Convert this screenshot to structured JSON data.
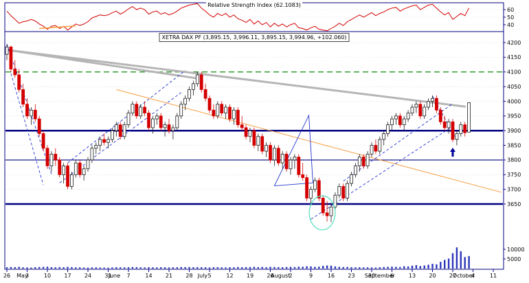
{
  "chart_data": {
    "type": "candlestick",
    "title": "XETRA DAX PF (3,895.15, 3,996.11, 3,895.15, 3,994.96, +102.060)",
    "rsi_title": "Relative Strength Index (62.1083)",
    "price_ticks": [
      4200,
      4150,
      4100,
      4050,
      4000,
      3950,
      3900,
      3850,
      3800,
      3750,
      3700,
      3650
    ],
    "volume_ticks": [
      10000,
      5000
    ],
    "rsi_ticks": [
      60,
      50,
      40
    ],
    "x_ticks": [
      {
        "x": 0,
        "label": "26"
      },
      {
        "x": 5,
        "label": "3"
      },
      {
        "x": 10,
        "label": "10"
      },
      {
        "x": 15,
        "label": "17"
      },
      {
        "x": 20,
        "label": "24"
      },
      {
        "x": 25,
        "label": "31"
      },
      {
        "x": 30,
        "label": "7"
      },
      {
        "x": 35,
        "label": "14"
      },
      {
        "x": 40,
        "label": "21"
      },
      {
        "x": 45,
        "label": "28"
      },
      {
        "x": 50,
        "label": "5"
      },
      {
        "x": 55,
        "label": "12"
      },
      {
        "x": 60,
        "label": "19"
      },
      {
        "x": 65,
        "label": "26"
      },
      {
        "x": 70,
        "label": "2"
      },
      {
        "x": 75,
        "label": "9"
      },
      {
        "x": 80,
        "label": "16"
      },
      {
        "x": 85,
        "label": "23"
      },
      {
        "x": 90,
        "label": "30"
      },
      {
        "x": 95,
        "label": "6"
      },
      {
        "x": 100,
        "label": "13"
      },
      {
        "x": 105,
        "label": "20"
      },
      {
        "x": 110,
        "label": "27"
      },
      {
        "x": 115,
        "label": "4"
      },
      {
        "x": 120,
        "label": "11"
      }
    ],
    "month_labels": [
      {
        "x": 3.8,
        "label": "May"
      },
      {
        "x": 26.5,
        "label": "June"
      },
      {
        "x": 48.3,
        "label": "July"
      },
      {
        "x": 67.5,
        "label": "August"
      },
      {
        "x": 92,
        "label": "September"
      },
      {
        "x": 112.7,
        "label": "October"
      }
    ],
    "colors": {
      "up_fill": "#ffffff",
      "up_stroke": "#1a1a1a",
      "down": "#d40000",
      "volume": "#2a35b8",
      "rsi_line": "#d40000",
      "frame": "#000080"
    },
    "ohlc": [
      [
        4160,
        4195,
        4140,
        4185
      ],
      [
        4185,
        4190,
        4100,
        4110
      ],
      [
        4110,
        4140,
        4080,
        4090
      ],
      [
        4090,
        4110,
        4030,
        4040
      ],
      [
        4040,
        4060,
        3980,
        3990
      ],
      [
        3990,
        4010,
        3940,
        3950
      ],
      [
        3950,
        3980,
        3920,
        3970
      ],
      [
        3970,
        3990,
        3930,
        3940
      ],
      [
        3940,
        3950,
        3880,
        3890
      ],
      [
        3890,
        3900,
        3830,
        3840
      ],
      [
        3840,
        3850,
        3770,
        3780
      ],
      [
        3780,
        3830,
        3760,
        3820
      ],
      [
        3820,
        3840,
        3780,
        3800
      ],
      [
        3800,
        3810,
        3740,
        3750
      ],
      [
        3750,
        3790,
        3720,
        3780
      ],
      [
        3780,
        3790,
        3700,
        3710
      ],
      [
        3710,
        3760,
        3700,
        3750
      ],
      [
        3750,
        3800,
        3740,
        3790
      ],
      [
        3790,
        3800,
        3740,
        3750
      ],
      [
        3750,
        3780,
        3730,
        3770
      ],
      [
        3770,
        3810,
        3760,
        3800
      ],
      [
        3800,
        3850,
        3790,
        3840
      ],
      [
        3840,
        3860,
        3820,
        3850
      ],
      [
        3850,
        3880,
        3830,
        3870
      ],
      [
        3870,
        3890,
        3850,
        3860
      ],
      [
        3860,
        3880,
        3840,
        3870
      ],
      [
        3870,
        3910,
        3860,
        3900
      ],
      [
        3900,
        3930,
        3880,
        3920
      ],
      [
        3920,
        3930,
        3870,
        3880
      ],
      [
        3880,
        3930,
        3870,
        3920
      ],
      [
        3920,
        3970,
        3910,
        3960
      ],
      [
        3960,
        4000,
        3950,
        3990
      ],
      [
        3990,
        4000,
        3940,
        3950
      ],
      [
        3950,
        3990,
        3940,
        3980
      ],
      [
        3980,
        4000,
        3950,
        3960
      ],
      [
        3960,
        3970,
        3900,
        3910
      ],
      [
        3910,
        3950,
        3890,
        3940
      ],
      [
        3940,
        3960,
        3920,
        3950
      ],
      [
        3950,
        3960,
        3900,
        3910
      ],
      [
        3910,
        3930,
        3880,
        3920
      ],
      [
        3920,
        3940,
        3890,
        3900
      ],
      [
        3900,
        3920,
        3870,
        3910
      ],
      [
        3910,
        3960,
        3900,
        3950
      ],
      [
        3950,
        4000,
        3940,
        3990
      ],
      [
        3990,
        4020,
        3970,
        4010
      ],
      [
        4010,
        4050,
        4000,
        4040
      ],
      [
        4040,
        4070,
        4020,
        4060
      ],
      [
        4060,
        4100,
        4050,
        4090
      ],
      [
        4090,
        4100,
        4030,
        4040
      ],
      [
        4040,
        4060,
        4000,
        4010
      ],
      [
        4010,
        4020,
        3960,
        3970
      ],
      [
        3970,
        3990,
        3940,
        3950
      ],
      [
        3950,
        4000,
        3940,
        3990
      ],
      [
        3990,
        4000,
        3950,
        3960
      ],
      [
        3960,
        3990,
        3940,
        3980
      ],
      [
        3980,
        3990,
        3930,
        3940
      ],
      [
        3940,
        3980,
        3920,
        3970
      ],
      [
        3970,
        3980,
        3910,
        3920
      ],
      [
        3920,
        3950,
        3900,
        3910
      ],
      [
        3910,
        3920,
        3870,
        3880
      ],
      [
        3880,
        3910,
        3860,
        3900
      ],
      [
        3900,
        3910,
        3840,
        3850
      ],
      [
        3850,
        3890,
        3830,
        3880
      ],
      [
        3880,
        3890,
        3820,
        3830
      ],
      [
        3830,
        3860,
        3810,
        3850
      ],
      [
        3850,
        3860,
        3790,
        3800
      ],
      [
        3800,
        3850,
        3780,
        3840
      ],
      [
        3840,
        3850,
        3780,
        3790
      ],
      [
        3790,
        3830,
        3770,
        3820
      ],
      [
        3820,
        3830,
        3760,
        3770
      ],
      [
        3770,
        3810,
        3750,
        3800
      ],
      [
        3800,
        3820,
        3770,
        3810
      ],
      [
        3810,
        3820,
        3740,
        3750
      ],
      [
        3750,
        3790,
        3730,
        3740
      ],
      [
        3740,
        3750,
        3660,
        3670
      ],
      [
        3670,
        3710,
        3650,
        3700
      ],
      [
        3700,
        3740,
        3690,
        3730
      ],
      [
        3730,
        3740,
        3660,
        3670
      ],
      [
        3670,
        3680,
        3610,
        3620
      ],
      [
        3620,
        3660,
        3590,
        3610
      ],
      [
        3610,
        3650,
        3588,
        3640
      ],
      [
        3640,
        3690,
        3630,
        3680
      ],
      [
        3680,
        3720,
        3670,
        3710
      ],
      [
        3710,
        3720,
        3660,
        3670
      ],
      [
        3670,
        3730,
        3660,
        3720
      ],
      [
        3720,
        3760,
        3710,
        3750
      ],
      [
        3750,
        3790,
        3740,
        3780
      ],
      [
        3780,
        3820,
        3760,
        3810
      ],
      [
        3810,
        3820,
        3770,
        3780
      ],
      [
        3780,
        3830,
        3770,
        3820
      ],
      [
        3820,
        3860,
        3810,
        3850
      ],
      [
        3850,
        3870,
        3820,
        3830
      ],
      [
        3830,
        3880,
        3820,
        3870
      ],
      [
        3870,
        3900,
        3850,
        3890
      ],
      [
        3890,
        3930,
        3880,
        3920
      ],
      [
        3920,
        3950,
        3900,
        3940
      ],
      [
        3940,
        3960,
        3920,
        3950
      ],
      [
        3950,
        3960,
        3910,
        3920
      ],
      [
        3920,
        3950,
        3900,
        3940
      ],
      [
        3940,
        3970,
        3930,
        3960
      ],
      [
        3960,
        3990,
        3950,
        3980
      ],
      [
        3980,
        4000,
        3960,
        3990
      ],
      [
        3990,
        4000,
        3940,
        3950
      ],
      [
        3950,
        3990,
        3940,
        3980
      ],
      [
        3980,
        4010,
        3970,
        4000
      ],
      [
        4000,
        4020,
        3980,
        4010
      ],
      [
        4010,
        4020,
        3960,
        3970
      ],
      [
        3970,
        3980,
        3920,
        3930
      ],
      [
        3930,
        3950,
        3900,
        3910
      ],
      [
        3910,
        3940,
        3890,
        3930
      ],
      [
        3930,
        3940,
        3860,
        3870
      ],
      [
        3870,
        3900,
        3850,
        3890
      ],
      [
        3890,
        3930,
        3880,
        3920
      ],
      [
        3920,
        3930,
        3880,
        3893
      ],
      [
        3895,
        3996,
        3895,
        3995
      ]
    ],
    "volume": [
      700,
      800,
      750,
      900,
      650,
      600,
      550,
      700,
      800,
      900,
      1000,
      700,
      650,
      800,
      700,
      900,
      750,
      600,
      650,
      550,
      500,
      600,
      650,
      550,
      500,
      450,
      600,
      700,
      650,
      600,
      700,
      800,
      750,
      650,
      600,
      700,
      650,
      600,
      700,
      650,
      600,
      650,
      700,
      800,
      750,
      800,
      700,
      750,
      700,
      650,
      600,
      700,
      750,
      650,
      600,
      700,
      650,
      800,
      700,
      750,
      800,
      900,
      750,
      850,
      700,
      900,
      800,
      750,
      700,
      800,
      900,
      800,
      1000,
      950,
      1200,
      1100,
      900,
      1000,
      1400,
      1600,
      1500,
      1100,
      900,
      800,
      850,
      700,
      650,
      700,
      600,
      650,
      600,
      550,
      700,
      800,
      900,
      1000,
      900,
      800,
      1200,
      1100,
      1500,
      1800,
      1300,
      1600,
      2000,
      2500,
      2200,
      3500,
      4500,
      5200,
      8000,
      11000,
      9000,
      6000,
      6500
    ],
    "rsi": [
      58,
      52,
      47,
      42,
      44,
      45,
      47,
      45,
      41,
      38,
      34,
      38,
      39,
      35,
      38,
      33,
      37,
      41,
      39,
      41,
      44,
      49,
      51,
      53,
      52,
      53,
      56,
      58,
      54,
      57,
      61,
      64,
      60,
      62,
      60,
      54,
      57,
      58,
      54,
      56,
      53,
      55,
      58,
      62,
      64,
      66,
      67,
      68,
      62,
      58,
      53,
      50,
      55,
      52,
      55,
      50,
      53,
      48,
      46,
      43,
      47,
      41,
      45,
      40,
      43,
      37,
      42,
      38,
      41,
      37,
      40,
      42,
      36,
      35,
      33,
      36,
      38,
      34,
      33,
      32,
      35,
      38,
      42,
      39,
      44,
      47,
      50,
      53,
      50,
      53,
      56,
      52,
      55,
      57,
      60,
      62,
      63,
      58,
      61,
      63,
      65,
      66,
      60,
      63,
      66,
      67,
      62,
      57,
      53,
      56,
      47,
      51,
      55,
      52,
      62.1
    ],
    "annotations": {
      "hline_color": "#000080",
      "hlines": [
        {
          "price": 3900,
          "width": 2.5
        },
        {
          "price": 3800,
          "width": 1.1
        },
        {
          "price": 3650,
          "width": 2.5
        }
      ],
      "green_dashed_price": 4100,
      "green_color": "#0a8a0a",
      "gray_color": "#b5b5b5",
      "gray_lines": [
        [
          0,
          4175,
          47,
          4078
        ],
        [
          0,
          4175,
          113,
          3982
        ]
      ],
      "orange_color": "#f79b3c",
      "orange_line": [
        27,
        4040,
        122,
        3690
      ],
      "dashed_color": "#2233cc",
      "dashed_lines": [
        [
          0,
          4195,
          11,
          3752
        ],
        [
          1,
          4095,
          9,
          3715
        ],
        [
          15,
          3790,
          44,
          4105
        ],
        [
          13,
          3722,
          43,
          4030
        ],
        [
          75,
          3598,
          110,
          3915
        ],
        [
          83,
          3728,
          110,
          3992
        ],
        [
          105,
          4018,
          111,
          3868
        ]
      ],
      "triangle_color": "#2233cc",
      "triangle": [
        [
          66,
          3712
        ],
        [
          74.5,
          3952
        ],
        [
          75.5,
          3722
        ]
      ],
      "ellipse": {
        "x": 77.8,
        "price": 3620,
        "rx_bars": 3.2,
        "ry_points": 58,
        "color": "#5fe0c0"
      },
      "arrow": {
        "x": 110,
        "price": 3842,
        "color": "#000099"
      },
      "rsi_orange": [
        8,
        35,
        17,
        38.5
      ]
    }
  }
}
